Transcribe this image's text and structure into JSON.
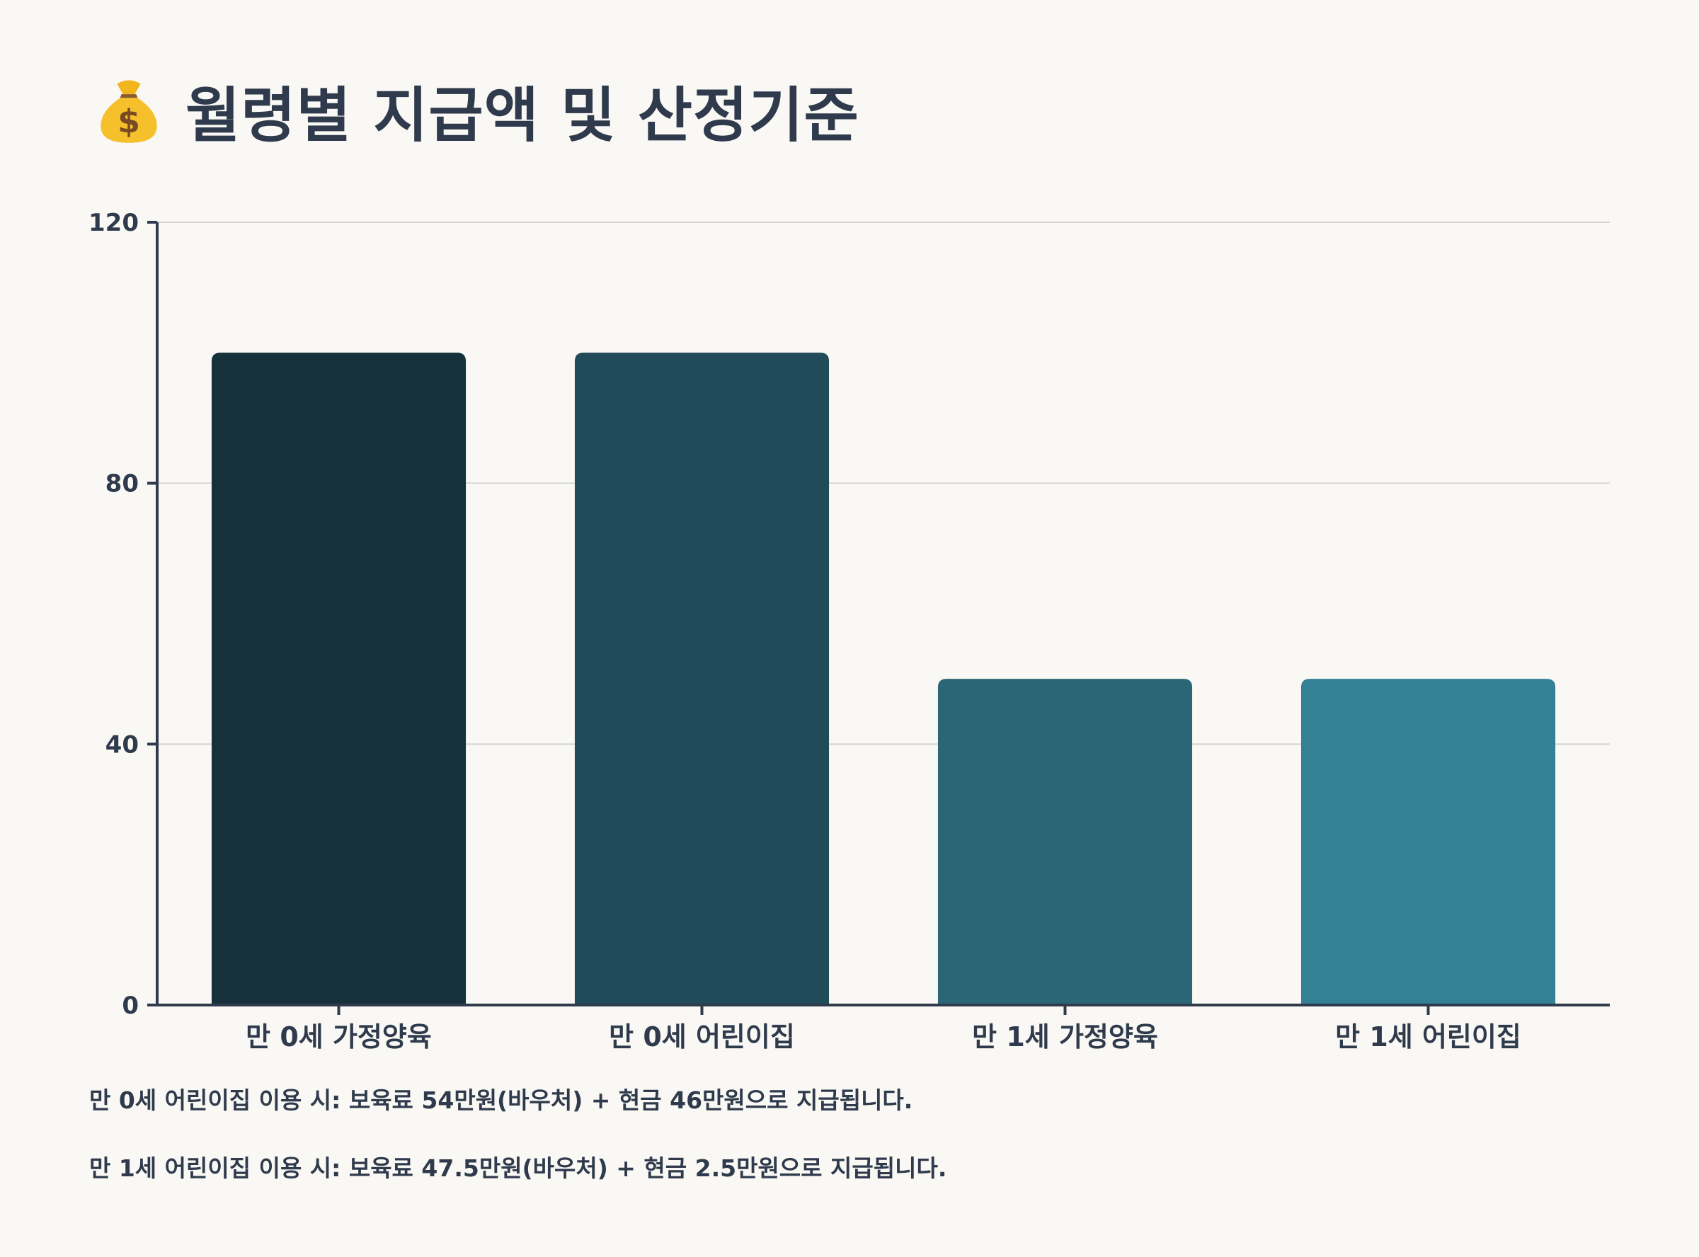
{
  "title": {
    "icon": "money-bag-icon",
    "text": "월령별 지급액 및 산정기준"
  },
  "chart_data": {
    "type": "bar",
    "categories": [
      "만 0세 가정양육",
      "만 0세 어린이집",
      "만 1세 가정양육",
      "만 1세 어린이집"
    ],
    "values": [
      100,
      100,
      50,
      50
    ],
    "colors": [
      "#17313a",
      "#214b59",
      "#2b6676",
      "#348195"
    ],
    "ylim": [
      0,
      120
    ],
    "yticks": [
      0,
      40,
      80,
      120
    ],
    "grid": true,
    "title": "",
    "xlabel": "",
    "ylabel": ""
  },
  "notes": [
    "만 0세 어린이집 이용 시: 보육료 54만원(바우처) + 현금 46만원으로 지급됩니다.",
    "만 1세 어린이집 이용 시: 보육료 47.5만원(바우처) + 현금 2.5만원으로 지급됩니다."
  ]
}
